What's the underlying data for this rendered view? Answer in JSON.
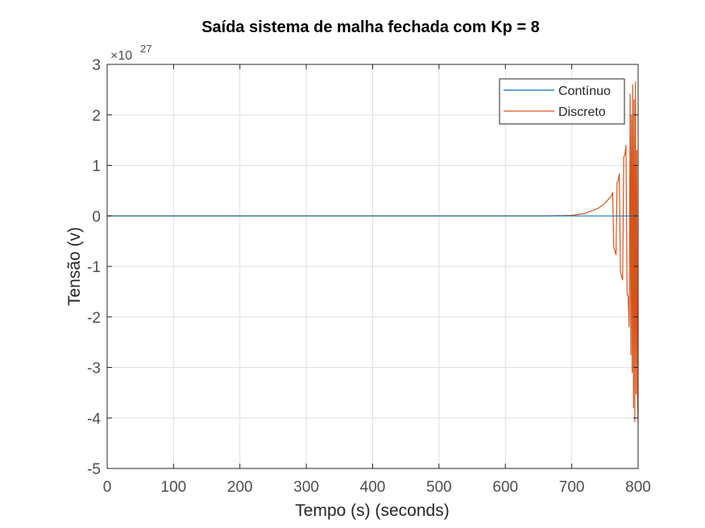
{
  "chart_data": {
    "type": "line",
    "title": "Saída sistema de malha fechada com Kp = 8",
    "xlabel": "Tempo (s) (seconds)",
    "ylabel": "Tensão (v)",
    "y_exponent": {
      "base": "×10",
      "power": "27"
    },
    "xlim": [
      0,
      800
    ],
    "ylim": [
      -5,
      3
    ],
    "y_scale_factor": 1e+27,
    "xticks": [
      0,
      100,
      200,
      300,
      400,
      500,
      600,
      700,
      800
    ],
    "xtick_labels": [
      "0",
      "100",
      "200",
      "300",
      "400",
      "500",
      "600",
      "700",
      "800"
    ],
    "yticks": [
      3,
      2,
      1,
      0,
      -1,
      -2,
      -3,
      -4,
      -5
    ],
    "ytick_labels": [
      "3",
      "2",
      "1",
      "0",
      "-1",
      "-2",
      "-3",
      "-4",
      "-5"
    ],
    "grid": true,
    "legend": {
      "location": "top-right"
    },
    "series": [
      {
        "name": "Contínuo",
        "color": "#0072BD",
        "x": [
          0,
          800
        ],
        "y": [
          0,
          0
        ]
      },
      {
        "name": "Discreto",
        "color": "#D95319",
        "description_of_shape": "oscillation with growing amplitude",
        "x": [
          0,
          650,
          700,
          720,
          740,
          750,
          760,
          765,
          770,
          775,
          780,
          785,
          788,
          790,
          792,
          794,
          796,
          798,
          800
        ],
        "y": [
          0,
          0,
          0.01,
          0.05,
          0.15,
          0.25,
          0.4,
          0.6,
          0.7,
          1.1,
          1.2,
          1.8,
          2.4,
          2.0,
          2.6,
          2.3,
          2.65,
          1.3,
          0
        ],
        "y_min": [
          0,
          0,
          -0.01,
          -0.05,
          -0.15,
          -0.3,
          -0.45,
          -0.7,
          -0.9,
          -1.2,
          -1.4,
          -1.6,
          -2.8,
          -2.7,
          -3.5,
          -4.1,
          -4.05,
          -3.0,
          -4.1
        ]
      }
    ]
  }
}
